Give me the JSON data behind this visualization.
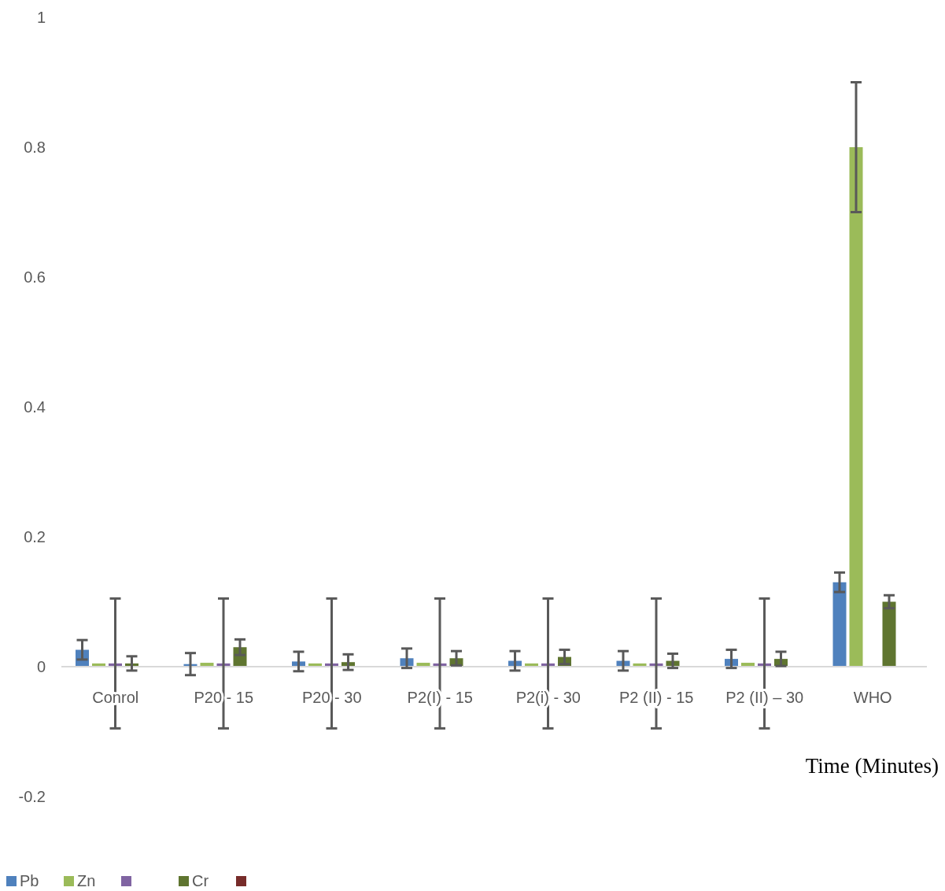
{
  "chart_data": {
    "type": "bar",
    "xlabel": "Time (Minutes)",
    "categories": [
      "Conrol",
      "P20 - 15",
      "P20 - 30",
      "P2(I) - 15",
      "P2(i) - 30",
      "P2 (II) - 15",
      "P2 (II) – 30",
      "WHO"
    ],
    "series": [
      {
        "name": "Pb",
        "color": "#4f81bd",
        "values": [
          0.026,
          0.004,
          0.008,
          0.013,
          0.009,
          0.009,
          0.012,
          0.13
        ],
        "errors": [
          0.015,
          0.017,
          0.015,
          0.015,
          0.015,
          0.015,
          0.014,
          0.015
        ]
      },
      {
        "name": "Zn",
        "color": "#9bbb59",
        "values": [
          0.005,
          0.006,
          0.005,
          0.006,
          0.005,
          0.005,
          0.006,
          0.8
        ],
        "errors": [
          null,
          null,
          null,
          null,
          null,
          null,
          null,
          0.1
        ]
      },
      {
        "color": "#8064a2",
        "values": [
          0.005,
          0.005,
          0.005,
          0.005,
          0.005,
          0.005,
          0.005,
          null
        ],
        "errors": [
          0.1,
          0.1,
          0.1,
          0.1,
          0.1,
          0.1,
          0.1,
          null
        ]
      },
      {
        "name": "Cr",
        "color": "#5f7530",
        "values": [
          0.005,
          0.03,
          0.007,
          0.013,
          0.015,
          0.009,
          0.012,
          0.1
        ],
        "errors": [
          0.011,
          0.012,
          0.012,
          0.011,
          0.011,
          0.011,
          0.011,
          0.01
        ]
      },
      {
        "color": "#772c2a",
        "values": [
          null,
          null,
          null,
          null,
          null,
          null,
          null,
          null
        ]
      }
    ],
    "ylim": [
      -0.2,
      1
    ],
    "yticks": [
      -0.2,
      0,
      0.2,
      0.4,
      0.6,
      0.8,
      1
    ],
    "grid": false,
    "legend": "bottom left"
  }
}
